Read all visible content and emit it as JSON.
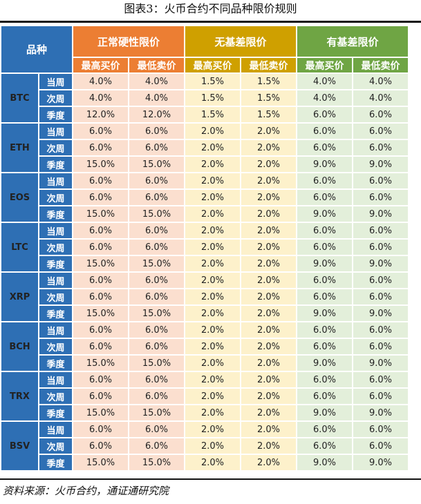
{
  "caption": "图表3：火币合约不同品种限价规则",
  "source": "资料来源：火币合约，通证通研究院",
  "colors": {
    "header_blue": "#2e6fb4",
    "normal_header": "#ec7e33",
    "no_basis_header": "#cfa000",
    "basis_header": "#6fa544",
    "normal_cell": "#fbdfcf",
    "no_basis_cell": "#fdf1cb",
    "basis_cell": "#e3efda"
  },
  "table": {
    "corner_label": "品种",
    "groups": [
      "正常硬性限价",
      "无基差限价",
      "有基差限价"
    ],
    "subheaders": [
      "最高买价",
      "最低卖价",
      "最高买价",
      "最低卖价",
      "最高买价",
      "最低卖价"
    ],
    "coins": [
      {
        "name": "BTC",
        "rows": [
          {
            "period": "当周",
            "values": [
              "4.0%",
              "4.0%",
              "1.5%",
              "1.5%",
              "4.0%",
              "4.0%"
            ]
          },
          {
            "period": "次周",
            "values": [
              "4.0%",
              "4.0%",
              "1.5%",
              "1.5%",
              "4.0%",
              "4.0%"
            ]
          },
          {
            "period": "季度",
            "values": [
              "12.0%",
              "12.0%",
              "1.5%",
              "1.5%",
              "6.0%",
              "6.0%"
            ]
          }
        ]
      },
      {
        "name": "ETH",
        "rows": [
          {
            "period": "当周",
            "values": [
              "6.0%",
              "6.0%",
              "2.0%",
              "2.0%",
              "6.0%",
              "6.0%"
            ]
          },
          {
            "period": "次周",
            "values": [
              "6.0%",
              "6.0%",
              "2.0%",
              "2.0%",
              "6.0%",
              "6.0%"
            ]
          },
          {
            "period": "季度",
            "values": [
              "15.0%",
              "15.0%",
              "2.0%",
              "2.0%",
              "9.0%",
              "9.0%"
            ]
          }
        ]
      },
      {
        "name": "EOS",
        "rows": [
          {
            "period": "当周",
            "values": [
              "6.0%",
              "6.0%",
              "2.0%",
              "2.0%",
              "6.0%",
              "6.0%"
            ]
          },
          {
            "period": "次周",
            "values": [
              "6.0%",
              "6.0%",
              "2.0%",
              "2.0%",
              "6.0%",
              "6.0%"
            ]
          },
          {
            "period": "季度",
            "values": [
              "15.0%",
              "15.0%",
              "2.0%",
              "2.0%",
              "9.0%",
              "9.0%"
            ]
          }
        ]
      },
      {
        "name": "LTC",
        "rows": [
          {
            "period": "当周",
            "values": [
              "6.0%",
              "6.0%",
              "2.0%",
              "2.0%",
              "6.0%",
              "6.0%"
            ]
          },
          {
            "period": "次周",
            "values": [
              "6.0%",
              "6.0%",
              "2.0%",
              "2.0%",
              "6.0%",
              "6.0%"
            ]
          },
          {
            "period": "季度",
            "values": [
              "15.0%",
              "15.0%",
              "2.0%",
              "2.0%",
              "9.0%",
              "9.0%"
            ]
          }
        ]
      },
      {
        "name": "XRP",
        "rows": [
          {
            "period": "当周",
            "values": [
              "6.0%",
              "6.0%",
              "2.0%",
              "2.0%",
              "6.0%",
              "6.0%"
            ]
          },
          {
            "period": "次周",
            "values": [
              "6.0%",
              "6.0%",
              "2.0%",
              "2.0%",
              "6.0%",
              "6.0%"
            ]
          },
          {
            "period": "季度",
            "values": [
              "15.0%",
              "15.0%",
              "2.0%",
              "2.0%",
              "9.0%",
              "9.0%"
            ]
          }
        ]
      },
      {
        "name": "BCH",
        "rows": [
          {
            "period": "当周",
            "values": [
              "6.0%",
              "6.0%",
              "2.0%",
              "2.0%",
              "6.0%",
              "6.0%"
            ]
          },
          {
            "period": "次周",
            "values": [
              "6.0%",
              "6.0%",
              "2.0%",
              "2.0%",
              "6.0%",
              "6.0%"
            ]
          },
          {
            "period": "季度",
            "values": [
              "15.0%",
              "15.0%",
              "2.0%",
              "2.0%",
              "9.0%",
              "9.0%"
            ]
          }
        ]
      },
      {
        "name": "TRX",
        "rows": [
          {
            "period": "当周",
            "values": [
              "6.0%",
              "6.0%",
              "2.0%",
              "2.0%",
              "6.0%",
              "6.0%"
            ]
          },
          {
            "period": "次周",
            "values": [
              "6.0%",
              "6.0%",
              "2.0%",
              "2.0%",
              "6.0%",
              "6.0%"
            ]
          },
          {
            "period": "季度",
            "values": [
              "15.0%",
              "15.0%",
              "2.0%",
              "2.0%",
              "9.0%",
              "9.0%"
            ]
          }
        ]
      },
      {
        "name": "BSV",
        "rows": [
          {
            "period": "当周",
            "values": [
              "6.0%",
              "6.0%",
              "2.0%",
              "2.0%",
              "6.0%",
              "6.0%"
            ]
          },
          {
            "period": "次周",
            "values": [
              "6.0%",
              "6.0%",
              "2.0%",
              "2.0%",
              "6.0%",
              "6.0%"
            ]
          },
          {
            "period": "季度",
            "values": [
              "15.0%",
              "15.0%",
              "2.0%",
              "2.0%",
              "9.0%",
              "9.0%"
            ]
          }
        ]
      }
    ]
  }
}
